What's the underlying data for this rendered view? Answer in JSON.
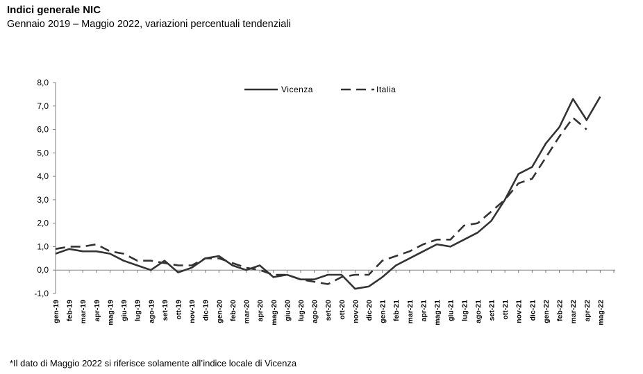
{
  "header": {
    "title": "Indici generale NIC",
    "subtitle": "Gennaio 2019 – Maggio 2022, variazioni percentuali tendenziali"
  },
  "footnote": "*Il dato di Maggio 2022 si riferisce solamente all’indice locale di Vicenza",
  "chart_data": {
    "type": "line",
    "title": "Indici generale NIC",
    "subtitle": "Gennaio 2019 – Maggio 2022, variazioni percentuali tendenziali",
    "xlabel": "",
    "ylabel": "",
    "ylim": [
      -1.0,
      8.0
    ],
    "yticks": [
      "8,0",
      "7,0",
      "6,0",
      "5,0",
      "4,0",
      "3,0",
      "2,0",
      "1,0",
      "0,0",
      "-1,0"
    ],
    "ytick_values": [
      8,
      7,
      6,
      5,
      4,
      3,
      2,
      1,
      0,
      -1
    ],
    "grid": false,
    "legend": "top-center",
    "categories": [
      "gen-19",
      "feb-19",
      "mar-19",
      "apr-19",
      "mag-19",
      "giu-19",
      "lug-19",
      "ago-19",
      "set-19",
      "ott-19",
      "nov-19",
      "dic-19",
      "gen-20",
      "feb-20",
      "mar-20",
      "apr-20",
      "mag-20",
      "giu-20",
      "lug-20",
      "ago-20",
      "set-20",
      "ott-20",
      "nov-20",
      "dic-20",
      "gen-21",
      "feb-21",
      "mar-21",
      "apr-21",
      "mag-21",
      "giu-21",
      "lug-21",
      "ago-21",
      "set-21",
      "ott-21",
      "nov-21",
      "dic-21",
      "gen-22",
      "feb-22",
      "mar-22",
      "apr-22",
      "mag-22"
    ],
    "series": [
      {
        "name": "Vicenza",
        "style": "solid",
        "color": "#333333",
        "values": [
          0.7,
          0.9,
          0.8,
          0.8,
          0.7,
          0.4,
          0.2,
          0.0,
          0.4,
          -0.1,
          0.1,
          0.5,
          0.6,
          0.2,
          0.0,
          0.2,
          -0.3,
          -0.2,
          -0.4,
          -0.4,
          -0.2,
          -0.2,
          -0.8,
          -0.7,
          -0.3,
          0.2,
          0.5,
          0.8,
          1.1,
          1.0,
          1.3,
          1.6,
          2.1,
          3.0,
          4.1,
          4.4,
          5.4,
          6.1,
          7.3,
          6.4,
          7.4
        ]
      },
      {
        "name": "Italia",
        "style": "dashed",
        "color": "#333333",
        "values": [
          0.9,
          1.0,
          1.0,
          1.1,
          0.8,
          0.7,
          0.4,
          0.4,
          0.3,
          0.2,
          0.2,
          0.5,
          0.5,
          0.3,
          0.1,
          0.0,
          -0.2,
          -0.2,
          -0.4,
          -0.5,
          -0.6,
          -0.3,
          -0.2,
          -0.2,
          0.4,
          0.6,
          0.8,
          1.1,
          1.3,
          1.3,
          1.9,
          2.0,
          2.5,
          3.0,
          3.7,
          3.9,
          4.8,
          5.7,
          6.5,
          6.0,
          null
        ]
      }
    ]
  }
}
